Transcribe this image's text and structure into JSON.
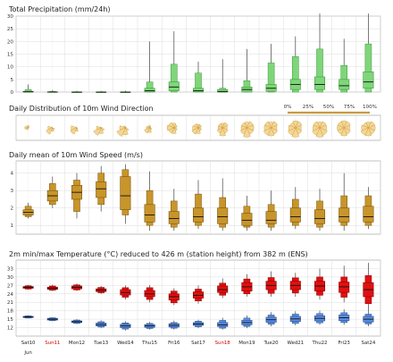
{
  "days": [
    "Sat10",
    "Sun11",
    "Mon12",
    "Tue13",
    "Wed14",
    "Thu15",
    "Fri16",
    "Sat17",
    "Sun18",
    "Mon19",
    "Tue20",
    "Wed21",
    "Thu22",
    "Fri23",
    "Sat24"
  ],
  "weekend_days": [
    "Sun11",
    "Sun18"
  ],
  "month_label": "Jun",
  "colors": {
    "grid": "#dcdcdc",
    "precip": "#7fd67a",
    "precip_edge": "#3f9b3a",
    "wind": "#c8952a",
    "wind_edge": "#7a5510",
    "tmax": "#e01010",
    "tmax_edge": "#900000",
    "tmin": "#5b8ee0",
    "tmin_edge": "#2a4f92",
    "whisker": "#444444",
    "rose_fill": "#f3d28a",
    "rose_edge": "#c89a3c"
  },
  "charts": [
    {
      "id": "precip",
      "type": "box",
      "title": "Total Precipitation (mm/24h)",
      "ylim": [
        0,
        30
      ],
      "yticks": [
        0,
        5,
        10,
        15,
        20,
        25,
        30
      ],
      "boxes": [
        {
          "wlo": 0,
          "q1": 0,
          "med": 0.1,
          "q3": 0.3,
          "whi": 3,
          "d1": 0,
          "d9": 1
        },
        {
          "wlo": 0,
          "q1": 0,
          "med": 0,
          "q3": 0.1,
          "whi": 0.8,
          "d1": 0,
          "d9": 0.3
        },
        {
          "wlo": 0,
          "q1": 0,
          "med": 0,
          "q3": 0,
          "whi": 0.5,
          "d1": 0,
          "d9": 0.1
        },
        {
          "wlo": 0,
          "q1": 0,
          "med": 0,
          "q3": 0,
          "whi": 0.4,
          "d1": 0,
          "d9": 0.1
        },
        {
          "wlo": 0,
          "q1": 0,
          "med": 0,
          "q3": 0,
          "whi": 0.5,
          "d1": 0,
          "d9": 0.1
        },
        {
          "wlo": 0,
          "q1": 0,
          "med": 0.5,
          "q3": 1.5,
          "whi": 20,
          "d1": 0,
          "d9": 4
        },
        {
          "wlo": 0,
          "q1": 0.5,
          "med": 2,
          "q3": 4,
          "whi": 24,
          "d1": 0,
          "d9": 11
        },
        {
          "wlo": 0,
          "q1": 0,
          "med": 0.5,
          "q3": 1.5,
          "whi": 12,
          "d1": 0,
          "d9": 7.5
        },
        {
          "wlo": 0,
          "q1": 0,
          "med": 0.2,
          "q3": 1,
          "whi": 13,
          "d1": 0,
          "d9": 1.5
        },
        {
          "wlo": 0,
          "q1": 0,
          "med": 1,
          "q3": 2,
          "whi": 17,
          "d1": 0,
          "d9": 4.5
        },
        {
          "wlo": 0,
          "q1": 0.3,
          "med": 1.5,
          "q3": 3,
          "whi": 19,
          "d1": 0,
          "d9": 11.5
        },
        {
          "wlo": 0,
          "q1": 1,
          "med": 3,
          "q3": 5,
          "whi": 22,
          "d1": 0,
          "d9": 14
        },
        {
          "wlo": 0,
          "q1": 1,
          "med": 3,
          "q3": 6,
          "whi": 31,
          "d1": 0,
          "d9": 17
        },
        {
          "wlo": 0,
          "q1": 1,
          "med": 2.5,
          "q3": 5,
          "whi": 21,
          "d1": 0,
          "d9": 10.5
        },
        {
          "wlo": 0,
          "q1": 1.5,
          "med": 4,
          "q3": 8,
          "whi": 31,
          "d1": 0,
          "d9": 19
        }
      ]
    },
    {
      "id": "wind_dir",
      "type": "rose",
      "title": "Daily Distribution of 10m Wind Direction",
      "legend": [
        "0%",
        "25%",
        "50%",
        "75%",
        "100%"
      ]
    },
    {
      "id": "wind",
      "type": "box",
      "title": "Daily mean of 10m Wind Speed (m/s)",
      "ylim": [
        0.5,
        4.7
      ],
      "yticks": [
        1,
        2,
        3,
        4
      ],
      "boxes": [
        {
          "wlo": 1.4,
          "d1": 1.5,
          "q1": 1.6,
          "med": 1.75,
          "q3": 1.9,
          "d9": 2.1,
          "whi": 2.3
        },
        {
          "wlo": 2.0,
          "d1": 2.2,
          "q1": 2.4,
          "med": 2.7,
          "q3": 3.0,
          "d9": 3.4,
          "whi": 3.8
        },
        {
          "wlo": 1.4,
          "d1": 1.8,
          "q1": 2.5,
          "med": 2.9,
          "q3": 3.3,
          "d9": 3.6,
          "whi": 4.0
        },
        {
          "wlo": 1.8,
          "d1": 2.2,
          "q1": 2.6,
          "med": 3.1,
          "q3": 3.5,
          "d9": 4.0,
          "whi": 4.4
        },
        {
          "wlo": 1.1,
          "d1": 1.6,
          "q1": 1.9,
          "med": 2.7,
          "q3": 3.8,
          "d9": 4.2,
          "whi": 4.5
        },
        {
          "wlo": 0.7,
          "d1": 1.0,
          "q1": 1.2,
          "med": 1.6,
          "q3": 2.2,
          "d9": 3.0,
          "whi": 4.1
        },
        {
          "wlo": 0.7,
          "d1": 0.9,
          "q1": 1.1,
          "med": 1.4,
          "q3": 1.8,
          "d9": 2.4,
          "whi": 3.1
        },
        {
          "wlo": 0.8,
          "d1": 1.0,
          "q1": 1.2,
          "med": 1.5,
          "q3": 2.0,
          "d9": 2.8,
          "whi": 3.6
        },
        {
          "wlo": 0.7,
          "d1": 0.9,
          "q1": 1.1,
          "med": 1.5,
          "q3": 2.0,
          "d9": 2.6,
          "whi": 3.7
        },
        {
          "wlo": 0.7,
          "d1": 0.9,
          "q1": 1.0,
          "med": 1.3,
          "q3": 1.7,
          "d9": 2.1,
          "whi": 2.7
        },
        {
          "wlo": 0.7,
          "d1": 0.9,
          "q1": 1.1,
          "med": 1.3,
          "q3": 1.8,
          "d9": 2.2,
          "whi": 3.0
        },
        {
          "wlo": 0.8,
          "d1": 1.0,
          "q1": 1.2,
          "med": 1.5,
          "q3": 2.0,
          "d9": 2.5,
          "whi": 3.2
        },
        {
          "wlo": 0.7,
          "d1": 0.9,
          "q1": 1.1,
          "med": 1.4,
          "q3": 1.9,
          "d9": 2.4,
          "whi": 3.1
        },
        {
          "wlo": 0.7,
          "d1": 1.0,
          "q1": 1.2,
          "med": 1.5,
          "q3": 2.0,
          "d9": 2.7,
          "whi": 4.0
        },
        {
          "wlo": 0.8,
          "d1": 1.0,
          "q1": 1.2,
          "med": 1.5,
          "q3": 2.1,
          "d9": 2.7,
          "whi": 3.2
        }
      ]
    },
    {
      "id": "temp",
      "type": "box",
      "title": "2m min/max Temperature (°C) reduced to 426 m (station height) from 382 m (ENS)",
      "ylim": [
        9,
        36
      ],
      "yticks": [
        12,
        15,
        18,
        21,
        24,
        27,
        30,
        33
      ],
      "tmax": [
        {
          "wlo": 25.5,
          "d1": 25.7,
          "q1": 26,
          "med": 26.3,
          "q3": 26.6,
          "d9": 26.9,
          "whi": 27.2
        },
        {
          "wlo": 25,
          "d1": 25.3,
          "q1": 25.6,
          "med": 26,
          "q3": 26.4,
          "d9": 26.8,
          "whi": 27.3
        },
        {
          "wlo": 25,
          "d1": 25.4,
          "q1": 25.8,
          "med": 26.3,
          "q3": 26.8,
          "d9": 27.2,
          "whi": 27.7
        },
        {
          "wlo": 24,
          "d1": 24.4,
          "q1": 24.8,
          "med": 25.3,
          "q3": 25.8,
          "d9": 26.3,
          "whi": 26.8
        },
        {
          "wlo": 22,
          "d1": 22.8,
          "q1": 23.6,
          "med": 24.5,
          "q3": 25.5,
          "d9": 26.2,
          "whi": 27
        },
        {
          "wlo": 21,
          "d1": 22,
          "q1": 23,
          "med": 24,
          "q3": 25.2,
          "d9": 26.2,
          "whi": 27.2
        },
        {
          "wlo": 20,
          "d1": 20.8,
          "q1": 21.8,
          "med": 23,
          "q3": 24,
          "d9": 25,
          "whi": 26
        },
        {
          "wlo": 20.5,
          "d1": 21.5,
          "q1": 22.5,
          "med": 23.5,
          "q3": 24.7,
          "d9": 25.7,
          "whi": 27
        },
        {
          "wlo": 22.5,
          "d1": 23.5,
          "q1": 24.5,
          "med": 25.5,
          "q3": 26.8,
          "d9": 27.8,
          "whi": 29.5
        },
        {
          "wlo": 23,
          "d1": 24,
          "q1": 25,
          "med": 26.5,
          "q3": 28,
          "d9": 29.3,
          "whi": 31
        },
        {
          "wlo": 23,
          "d1": 24.2,
          "q1": 25.5,
          "med": 27,
          "q3": 28.5,
          "d9": 29.8,
          "whi": 32
        },
        {
          "wlo": 23,
          "d1": 24.3,
          "q1": 25.5,
          "med": 27,
          "q3": 28.5,
          "d9": 29.7,
          "whi": 31.5
        },
        {
          "wlo": 22,
          "d1": 23.5,
          "q1": 25,
          "med": 26.8,
          "q3": 28.5,
          "d9": 30,
          "whi": 33
        },
        {
          "wlo": 21,
          "d1": 22.8,
          "q1": 24.5,
          "med": 26.5,
          "q3": 28.2,
          "d9": 30,
          "whi": 34
        },
        {
          "wlo": 18,
          "d1": 20.5,
          "q1": 23,
          "med": 25.5,
          "q3": 28,
          "d9": 30.5,
          "whi": 35
        }
      ],
      "tmin": [
        {
          "wlo": 15.3,
          "d1": 15.4,
          "q1": 15.6,
          "med": 15.8,
          "q3": 16,
          "d9": 16.2,
          "whi": 16.4
        },
        {
          "wlo": 14.3,
          "d1": 14.5,
          "q1": 14.7,
          "med": 15,
          "q3": 15.3,
          "d9": 15.5,
          "whi": 15.7
        },
        {
          "wlo": 13.3,
          "d1": 13.5,
          "q1": 13.8,
          "med": 14.1,
          "q3": 14.4,
          "d9": 14.7,
          "whi": 15
        },
        {
          "wlo": 11.8,
          "d1": 12.2,
          "q1": 12.6,
          "med": 13.1,
          "q3": 13.6,
          "d9": 14.1,
          "whi": 14.6
        },
        {
          "wlo": 11,
          "d1": 11.5,
          "q1": 12,
          "med": 12.6,
          "q3": 13.2,
          "d9": 13.7,
          "whi": 14.3
        },
        {
          "wlo": 11.3,
          "d1": 11.7,
          "q1": 12.1,
          "med": 12.6,
          "q3": 13.1,
          "d9": 13.5,
          "whi": 14
        },
        {
          "wlo": 11.3,
          "d1": 11.8,
          "q1": 12.2,
          "med": 12.8,
          "q3": 13.4,
          "d9": 13.8,
          "whi": 14.5
        },
        {
          "wlo": 11.8,
          "d1": 12.3,
          "q1": 12.8,
          "med": 13.3,
          "q3": 13.8,
          "d9": 14.3,
          "whi": 14.8
        },
        {
          "wlo": 11.3,
          "d1": 11.8,
          "q1": 12.4,
          "med": 13,
          "q3": 13.8,
          "d9": 14.6,
          "whi": 15.5
        },
        {
          "wlo": 11.8,
          "d1": 12.4,
          "q1": 13,
          "med": 13.8,
          "q3": 14.6,
          "d9": 15.4,
          "whi": 16.3
        },
        {
          "wlo": 12.5,
          "d1": 13.2,
          "q1": 13.9,
          "med": 14.8,
          "q3": 15.7,
          "d9": 16.5,
          "whi": 17.5
        },
        {
          "wlo": 12.8,
          "d1": 13.5,
          "q1": 14.2,
          "med": 15.1,
          "q3": 16,
          "d9": 16.8,
          "whi": 17.8
        },
        {
          "wlo": 13,
          "d1": 13.7,
          "q1": 14.4,
          "med": 15.3,
          "q3": 16.2,
          "d9": 17,
          "whi": 18
        },
        {
          "wlo": 13,
          "d1": 13.8,
          "q1": 14.5,
          "med": 15.5,
          "q3": 16.5,
          "d9": 17.3,
          "whi": 18.5
        },
        {
          "wlo": 12.5,
          "d1": 13.3,
          "q1": 14,
          "med": 15,
          "q3": 16,
          "d9": 16.8,
          "whi": 18
        }
      ]
    }
  ],
  "chart_data": [
    {
      "type": "box",
      "title": "Total Precipitation (mm/24h)",
      "ylim": [
        0,
        30
      ],
      "categories": "days"
    },
    {
      "type": "rose",
      "title": "Daily Distribution of 10m Wind Direction"
    },
    {
      "type": "box",
      "title": "Daily mean of 10m Wind Speed (m/s)",
      "ylim": [
        0.5,
        4.7
      ],
      "categories": "days"
    },
    {
      "type": "box",
      "title": "2m min/max Temperature (°C) reduced to 426 m (station height) from 382 m (ENS)",
      "ylim": [
        9,
        36
      ],
      "categories": "days"
    }
  ]
}
